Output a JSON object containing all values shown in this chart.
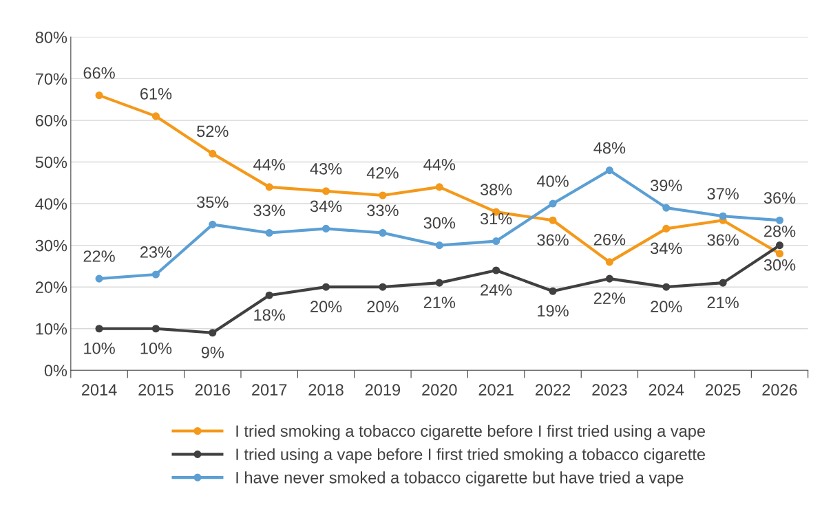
{
  "chart_data": {
    "type": "line",
    "categories": [
      "2014",
      "2015",
      "2016",
      "2017",
      "2018",
      "2019",
      "2020",
      "2021",
      "2022",
      "2023",
      "2024",
      "2025",
      "2026"
    ],
    "series": [
      {
        "name": "I tried smoking a tobacco cigarette before I first tried using a vape",
        "color": "#f4991a",
        "values": [
          66,
          61,
          52,
          44,
          43,
          42,
          44,
          38,
          36,
          26,
          34,
          36,
          28
        ],
        "value_labels": [
          "66%",
          "61%",
          "52%",
          "44%",
          "43%",
          "42%",
          "44%",
          "38%",
          "36%",
          "26%",
          "34%",
          "36%",
          "28%"
        ]
      },
      {
        "name": "I tried using a vape before I first tried smoking a tobacco cigarette",
        "color": "#404040",
        "values": [
          10,
          10,
          9,
          18,
          20,
          20,
          21,
          24,
          19,
          22,
          20,
          21,
          30
        ],
        "value_labels": [
          "10%",
          "10%",
          "9%",
          "18%",
          "20%",
          "20%",
          "21%",
          "24%",
          "19%",
          "22%",
          "20%",
          "21%",
          "30%"
        ]
      },
      {
        "name": "I have never smoked a tobacco cigarette but have tried a vape",
        "color": "#5b9fd4",
        "values": [
          22,
          23,
          35,
          33,
          34,
          33,
          30,
          31,
          40,
          48,
          39,
          37,
          36
        ],
        "value_labels": [
          "22%",
          "23%",
          "35%",
          "33%",
          "34%",
          "33%",
          "30%",
          "31%",
          "40%",
          "48%",
          "39%",
          "37%",
          "36%"
        ]
      }
    ],
    "ylim": [
      0,
      80
    ],
    "yticks": [
      {
        "value": 0,
        "label": "0%"
      },
      {
        "value": 10,
        "label": "10%"
      },
      {
        "value": 20,
        "label": "20%"
      },
      {
        "value": 30,
        "label": "30%"
      },
      {
        "value": 40,
        "label": "40%"
      },
      {
        "value": 50,
        "label": "50%"
      },
      {
        "value": 60,
        "label": "60%"
      },
      {
        "value": 70,
        "label": "70%"
      },
      {
        "value": 80,
        "label": "80%"
      }
    ],
    "grid": "y",
    "legend": "bottom",
    "marker": "circle",
    "line_style": "solid"
  }
}
